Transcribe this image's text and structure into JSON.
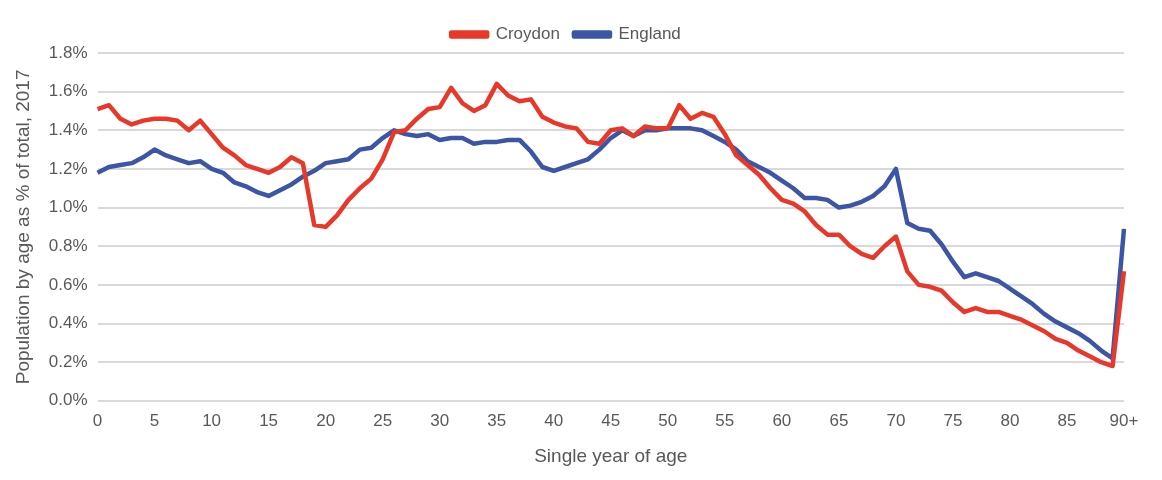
{
  "chart_data": {
    "type": "line",
    "xlabel": "Single year of age",
    "ylabel": "Population by age as % of total, 2017",
    "categories": [
      "0",
      null,
      null,
      null,
      null,
      "5",
      null,
      null,
      null,
      null,
      "10",
      null,
      null,
      null,
      null,
      "15",
      null,
      null,
      null,
      null,
      "20",
      null,
      null,
      null,
      null,
      "25",
      null,
      null,
      null,
      null,
      "30",
      null,
      null,
      null,
      null,
      "35",
      null,
      null,
      null,
      null,
      "40",
      null,
      null,
      null,
      null,
      "45",
      null,
      null,
      null,
      null,
      "50",
      null,
      null,
      null,
      null,
      "55",
      null,
      null,
      null,
      null,
      "60",
      null,
      null,
      null,
      null,
      "65",
      null,
      null,
      null,
      null,
      "70",
      null,
      null,
      null,
      null,
      "75",
      null,
      null,
      null,
      null,
      "80",
      null,
      null,
      null,
      null,
      "85",
      null,
      null,
      null,
      null,
      "90+"
    ],
    "series": [
      {
        "name": "Croydon",
        "color": "#e8382a",
        "values": [
          1.51,
          1.53,
          1.46,
          1.43,
          1.45,
          1.46,
          1.46,
          1.45,
          1.4,
          1.45,
          1.38,
          1.31,
          1.27,
          1.22,
          1.2,
          1.18,
          1.21,
          1.26,
          1.23,
          0.91,
          0.9,
          0.96,
          1.04,
          1.1,
          1.15,
          1.25,
          1.39,
          1.4,
          1.46,
          1.51,
          1.52,
          1.62,
          1.54,
          1.5,
          1.53,
          1.64,
          1.58,
          1.55,
          1.56,
          1.47,
          1.44,
          1.42,
          1.41,
          1.34,
          1.33,
          1.4,
          1.41,
          1.37,
          1.42,
          1.41,
          1.41,
          1.53,
          1.46,
          1.49,
          1.47,
          1.38,
          1.27,
          1.22,
          1.17,
          1.1,
          1.04,
          1.02,
          0.98,
          0.91,
          0.86,
          0.86,
          0.8,
          0.76,
          0.74,
          0.8,
          0.85,
          0.67,
          0.6,
          0.59,
          0.57,
          0.51,
          0.46,
          0.48,
          0.46,
          0.46,
          0.44,
          0.42,
          0.39,
          0.36,
          0.32,
          0.3,
          0.26,
          0.23,
          0.2,
          0.18,
          0.67
        ]
      },
      {
        "name": "England",
        "color": "#3c55a5",
        "values": [
          1.18,
          1.21,
          1.22,
          1.23,
          1.26,
          1.3,
          1.27,
          1.25,
          1.23,
          1.24,
          1.2,
          1.18,
          1.13,
          1.11,
          1.08,
          1.06,
          1.09,
          1.12,
          1.16,
          1.19,
          1.23,
          1.24,
          1.25,
          1.3,
          1.31,
          1.36,
          1.4,
          1.38,
          1.37,
          1.38,
          1.35,
          1.36,
          1.36,
          1.33,
          1.34,
          1.34,
          1.35,
          1.35,
          1.29,
          1.21,
          1.19,
          1.21,
          1.23,
          1.25,
          1.3,
          1.36,
          1.4,
          1.37,
          1.4,
          1.4,
          1.41,
          1.41,
          1.41,
          1.4,
          1.37,
          1.34,
          1.3,
          1.24,
          1.21,
          1.18,
          1.14,
          1.1,
          1.05,
          1.05,
          1.04,
          1.0,
          1.01,
          1.03,
          1.06,
          1.11,
          1.2,
          0.92,
          0.89,
          0.88,
          0.81,
          0.72,
          0.64,
          0.66,
          0.64,
          0.62,
          0.58,
          0.54,
          0.5,
          0.45,
          0.41,
          0.38,
          0.35,
          0.31,
          0.26,
          0.22,
          0.89
        ]
      }
    ],
    "ylim": [
      0,
      1.8
    ],
    "yticks": [
      {
        "value": 0,
        "label": "0.0%"
      },
      {
        "value": 0.2,
        "label": "0.2%"
      },
      {
        "value": 0.4,
        "label": "0.4%"
      },
      {
        "value": 0.6,
        "label": "0.6%"
      },
      {
        "value": 0.8,
        "label": "0.8%"
      },
      {
        "value": 1.0,
        "label": "1.0%"
      },
      {
        "value": 1.2,
        "label": "1.2%"
      },
      {
        "value": 1.4,
        "label": "1.4%"
      },
      {
        "value": 1.6,
        "label": "1.6%"
      },
      {
        "value": 1.8,
        "label": "1.8%"
      }
    ],
    "grid": "y",
    "legend": "top",
    "marker": "none",
    "line_style": "solid"
  }
}
